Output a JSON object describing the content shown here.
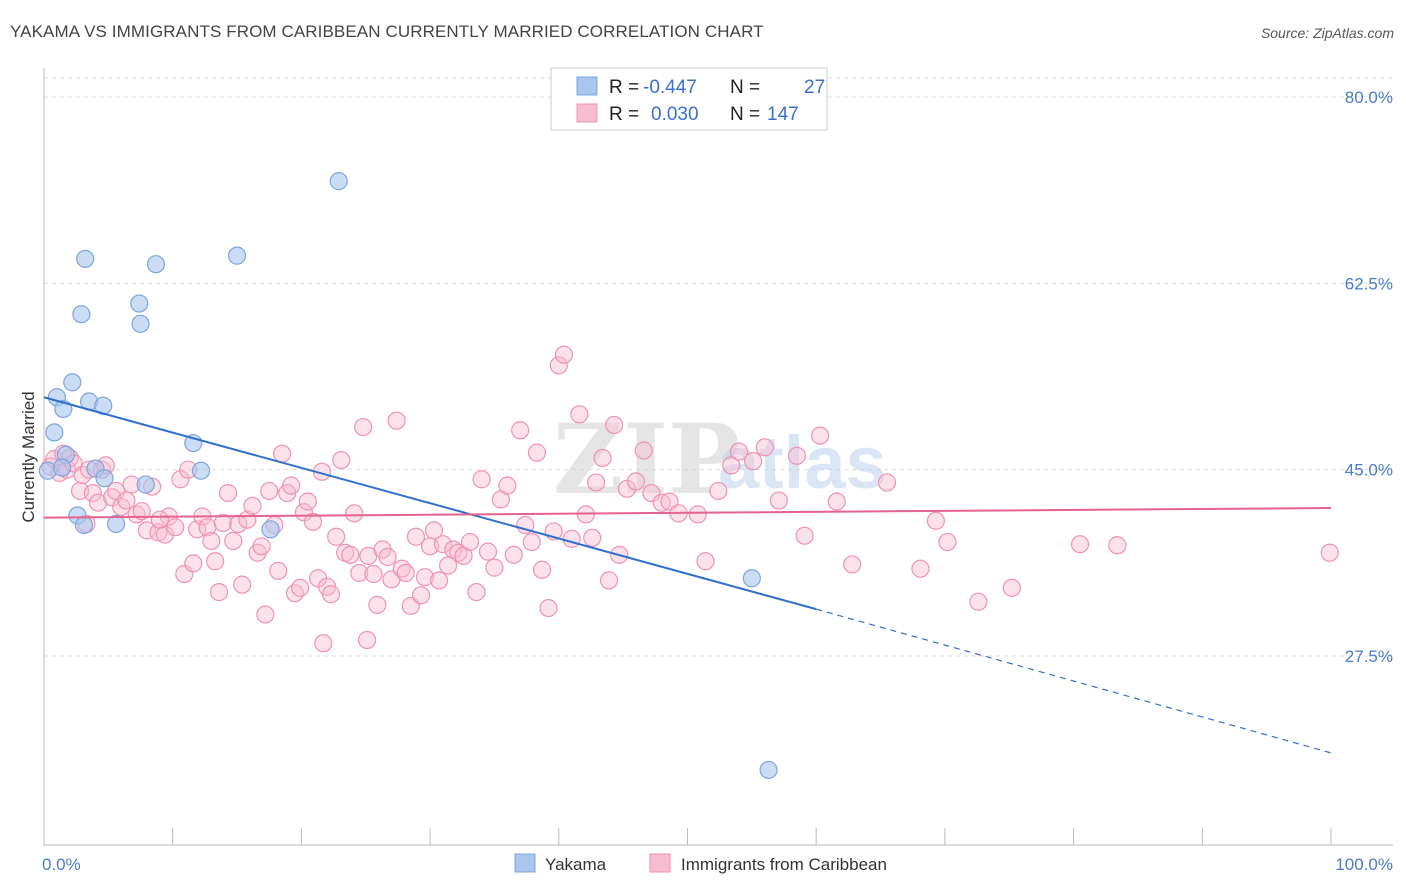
{
  "title": "YAKAMA VS IMMIGRANTS FROM CARIBBEAN CURRENTLY MARRIED CORRELATION CHART",
  "source": "Source: ZipAtlas.com",
  "watermark": {
    "zip": "ZIP",
    "atlas": "atlas"
  },
  "colors": {
    "yakama_fill": "#a9c6ef",
    "yakama_stroke": "#7ea6dd",
    "yakama_line": "#3070cc",
    "carib_fill": "#f6bcd0",
    "carib_stroke": "#ef93b2",
    "carib_line": "#e4628e",
    "tick_label": "#4a7cc9",
    "grid": "#dddddd"
  },
  "legend": {
    "r_label": "R =",
    "n_label": "N =",
    "rows": [
      {
        "r": "-0.447",
        "n": "27"
      },
      {
        "r": "0.030",
        "n": "147"
      }
    ]
  },
  "chart_data": {
    "type": "scatter",
    "title": "YAKAMA VS IMMIGRANTS FROM CARIBBEAN CURRENTLY MARRIED CORRELATION CHART",
    "xlabel": "",
    "ylabel": "Currently Married",
    "xlim": [
      0,
      100
    ],
    "ylim": [
      10,
      84
    ],
    "x_ticks": [
      0,
      100
    ],
    "x_tick_labels": [
      "0.0%",
      "100.0%"
    ],
    "y_ticks": [
      27.5,
      45.0,
      62.5,
      80.0
    ],
    "y_tick_labels": [
      "27.5%",
      "45.0%",
      "62.5%",
      "80.0%"
    ],
    "grid": true,
    "legend_position": "top-center",
    "series": [
      {
        "name": "Yakama",
        "r": -0.447,
        "n": 27,
        "trend": {
          "x0": 0,
          "y0": 51.8,
          "x1": 60,
          "y1": 31.9,
          "dash_to_x": 100,
          "dash_to_y": 18.4
        },
        "points": [
          [
            0.3,
            44.9
          ],
          [
            1.0,
            51.8
          ],
          [
            1.5,
            50.7
          ],
          [
            0.8,
            48.5
          ],
          [
            1.7,
            46.4
          ],
          [
            2.2,
            53.2
          ],
          [
            2.6,
            40.7
          ],
          [
            3.1,
            39.8
          ],
          [
            2.9,
            59.6
          ],
          [
            3.2,
            64.8
          ],
          [
            3.5,
            51.4
          ],
          [
            4.0,
            45.1
          ],
          [
            4.6,
            51.0
          ],
          [
            4.7,
            44.2
          ],
          [
            5.6,
            39.9
          ],
          [
            7.4,
            60.6
          ],
          [
            7.5,
            58.7
          ],
          [
            7.9,
            43.6
          ],
          [
            8.7,
            64.3
          ],
          [
            11.6,
            47.5
          ],
          [
            12.2,
            44.9
          ],
          [
            15.0,
            65.1
          ],
          [
            17.6,
            39.4
          ],
          [
            22.9,
            72.1
          ],
          [
            55.0,
            34.8
          ],
          [
            56.3,
            16.8
          ],
          [
            1.4,
            45.2
          ]
        ]
      },
      {
        "name": "Immigrants from Caribbean",
        "r": 0.03,
        "n": 147,
        "trend": {
          "x0": 0,
          "y0": 40.5,
          "x1": 100,
          "y1": 41.4
        },
        "points": [
          [
            0.5,
            45.3
          ],
          [
            0.8,
            46.0
          ],
          [
            1.2,
            44.7
          ],
          [
            1.5,
            46.5
          ],
          [
            1.8,
            45.0
          ],
          [
            2.0,
            46.1
          ],
          [
            2.3,
            45.6
          ],
          [
            2.8,
            43.0
          ],
          [
            3.0,
            44.5
          ],
          [
            3.5,
            45.0
          ],
          [
            3.8,
            42.8
          ],
          [
            4.2,
            41.9
          ],
          [
            4.5,
            45.0
          ],
          [
            4.8,
            45.4
          ],
          [
            5.3,
            42.4
          ],
          [
            5.6,
            43.0
          ],
          [
            6.0,
            41.5
          ],
          [
            6.4,
            42.1
          ],
          [
            6.8,
            43.6
          ],
          [
            7.2,
            40.8
          ],
          [
            7.6,
            41.1
          ],
          [
            8.0,
            39.3
          ],
          [
            8.4,
            43.4
          ],
          [
            8.9,
            39.1
          ],
          [
            9.4,
            38.9
          ],
          [
            9.7,
            40.6
          ],
          [
            10.2,
            39.6
          ],
          [
            10.6,
            44.1
          ],
          [
            10.9,
            35.2
          ],
          [
            11.2,
            45.0
          ],
          [
            11.6,
            36.2
          ],
          [
            11.9,
            39.4
          ],
          [
            12.3,
            40.6
          ],
          [
            12.7,
            39.6
          ],
          [
            13.0,
            38.3
          ],
          [
            13.3,
            36.4
          ],
          [
            13.6,
            33.5
          ],
          [
            13.9,
            40.0
          ],
          [
            14.3,
            42.8
          ],
          [
            14.7,
            38.3
          ],
          [
            15.1,
            39.9
          ],
          [
            15.4,
            34.2
          ],
          [
            15.8,
            40.3
          ],
          [
            16.2,
            41.6
          ],
          [
            16.6,
            37.2
          ],
          [
            16.9,
            37.8
          ],
          [
            17.2,
            31.4
          ],
          [
            17.5,
            43.0
          ],
          [
            17.9,
            39.8
          ],
          [
            18.2,
            35.5
          ],
          [
            18.5,
            46.5
          ],
          [
            18.9,
            42.8
          ],
          [
            19.2,
            43.5
          ],
          [
            19.5,
            33.4
          ],
          [
            19.9,
            33.9
          ],
          [
            20.2,
            41.0
          ],
          [
            20.5,
            42.0
          ],
          [
            20.9,
            40.1
          ],
          [
            21.3,
            34.8
          ],
          [
            21.6,
            44.8
          ],
          [
            22.0,
            34.0
          ],
          [
            22.3,
            33.3
          ],
          [
            22.7,
            38.7
          ],
          [
            23.1,
            45.9
          ],
          [
            23.4,
            37.2
          ],
          [
            23.8,
            37.0
          ],
          [
            24.1,
            40.9
          ],
          [
            24.5,
            35.3
          ],
          [
            24.8,
            49.0
          ],
          [
            25.2,
            36.9
          ],
          [
            25.6,
            35.2
          ],
          [
            25.9,
            32.3
          ],
          [
            26.3,
            37.5
          ],
          [
            26.7,
            36.8
          ],
          [
            27.0,
            34.7
          ],
          [
            27.4,
            49.6
          ],
          [
            27.8,
            35.7
          ],
          [
            28.1,
            35.3
          ],
          [
            28.5,
            32.2
          ],
          [
            28.9,
            38.7
          ],
          [
            29.3,
            33.2
          ],
          [
            29.6,
            34.9
          ],
          [
            30.0,
            37.8
          ],
          [
            30.3,
            39.3
          ],
          [
            30.7,
            34.6
          ],
          [
            31.0,
            38.0
          ],
          [
            31.4,
            36.0
          ],
          [
            31.8,
            37.5
          ],
          [
            32.2,
            37.2
          ],
          [
            32.6,
            36.9
          ],
          [
            33.1,
            38.2
          ],
          [
            33.6,
            33.5
          ],
          [
            34.0,
            44.1
          ],
          [
            34.5,
            37.3
          ],
          [
            35.0,
            35.8
          ],
          [
            35.5,
            42.2
          ],
          [
            36.0,
            43.5
          ],
          [
            36.5,
            37.0
          ],
          [
            37.0,
            48.7
          ],
          [
            37.4,
            39.8
          ],
          [
            37.9,
            38.2
          ],
          [
            38.3,
            46.6
          ],
          [
            38.7,
            35.6
          ],
          [
            39.2,
            32.0
          ],
          [
            39.6,
            39.2
          ],
          [
            40.0,
            54.8
          ],
          [
            40.4,
            55.8
          ],
          [
            41.0,
            38.5
          ],
          [
            41.6,
            50.2
          ],
          [
            42.1,
            40.8
          ],
          [
            42.6,
            38.6
          ],
          [
            42.9,
            43.8
          ],
          [
            43.4,
            46.1
          ],
          [
            43.9,
            34.6
          ],
          [
            44.3,
            49.2
          ],
          [
            44.7,
            37.0
          ],
          [
            45.3,
            43.2
          ],
          [
            46.0,
            43.9
          ],
          [
            46.6,
            46.8
          ],
          [
            47.2,
            42.8
          ],
          [
            48.0,
            41.9
          ],
          [
            48.6,
            42.0
          ],
          [
            49.3,
            40.9
          ],
          [
            50.8,
            40.8
          ],
          [
            51.4,
            36.4
          ],
          [
            52.4,
            43.0
          ],
          [
            53.4,
            45.4
          ],
          [
            54.0,
            46.7
          ],
          [
            55.1,
            45.8
          ],
          [
            56.0,
            47.1
          ],
          [
            57.1,
            42.1
          ],
          [
            58.5,
            46.3
          ],
          [
            59.1,
            38.8
          ],
          [
            60.3,
            48.2
          ],
          [
            61.6,
            42.0
          ],
          [
            62.8,
            36.1
          ],
          [
            65.5,
            43.8
          ],
          [
            68.1,
            35.7
          ],
          [
            69.3,
            40.2
          ],
          [
            70.2,
            38.2
          ],
          [
            72.6,
            32.6
          ],
          [
            75.2,
            33.9
          ],
          [
            80.5,
            38.0
          ],
          [
            83.4,
            37.9
          ],
          [
            99.9,
            37.2
          ],
          [
            3.3,
            39.9
          ],
          [
            9.0,
            40.3
          ],
          [
            21.7,
            28.7
          ],
          [
            25.1,
            29.0
          ]
        ]
      }
    ]
  },
  "bottom_legend": [
    "Yakama",
    "Immigrants from Caribbean"
  ]
}
